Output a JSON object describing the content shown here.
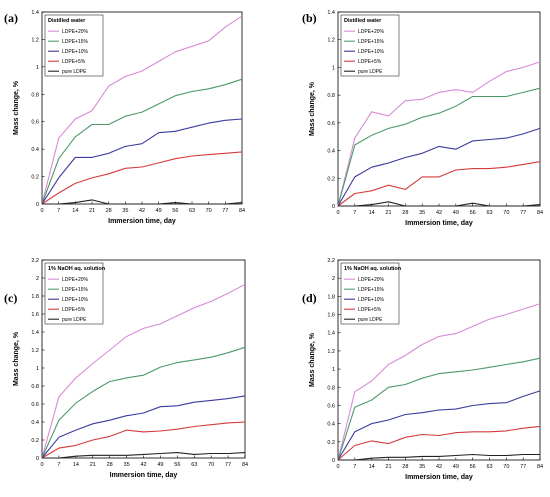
{
  "chart_data": [
    {
      "type": "line",
      "panel_label": "(a)",
      "legend_title": "Distilled water",
      "legend_placement": "top-left",
      "xlabel": "Immersion time, day",
      "ylabel": "Mass change, %",
      "x": [
        0,
        7,
        14,
        21,
        28,
        35,
        42,
        49,
        56,
        63,
        70,
        77,
        84
      ],
      "xticks": [
        "0",
        "7",
        "14",
        "21",
        "28",
        "35",
        "42",
        "49",
        "56",
        "63",
        "70",
        "77",
        "84"
      ],
      "xlim": [
        0,
        84
      ],
      "ylim": [
        0,
        1.4
      ],
      "yticks": [
        "0",
        "0.2",
        "0.4",
        "0.6",
        "0.8",
        "1",
        "1.2",
        "1.4"
      ],
      "ytick_values": [
        0,
        0.2,
        0.4,
        0.6,
        0.8,
        1,
        1.2,
        1.4
      ],
      "grid": false,
      "series": [
        {
          "name": "LDPE+20%",
          "color": "#d98ad6",
          "values": [
            0,
            0.48,
            0.62,
            0.68,
            0.86,
            0.93,
            0.97,
            1.04,
            1.11,
            1.15,
            1.19,
            1.29,
            1.37
          ]
        },
        {
          "name": "LDPE+15%",
          "color": "#4c9a6a",
          "values": [
            0,
            0.33,
            0.49,
            0.58,
            0.58,
            0.64,
            0.67,
            0.73,
            0.79,
            0.82,
            0.84,
            0.87,
            0.91
          ]
        },
        {
          "name": "LDPE+10%",
          "color": "#3b3b9e",
          "values": [
            0,
            0.19,
            0.34,
            0.34,
            0.37,
            0.42,
            0.44,
            0.52,
            0.53,
            0.56,
            0.59,
            0.61,
            0.62
          ]
        },
        {
          "name": "LDPE+5%",
          "color": "#d43b3b",
          "values": [
            0,
            0.08,
            0.15,
            0.19,
            0.22,
            0.26,
            0.27,
            0.3,
            0.33,
            0.35,
            0.36,
            0.37,
            0.38
          ]
        },
        {
          "name": "pure LDPE",
          "color": "#222222",
          "values": [
            0,
            0.0,
            0.01,
            0.03,
            0.0,
            0.0,
            0.0,
            0.0,
            0.01,
            0.0,
            0.0,
            0.0,
            0.01
          ]
        }
      ]
    },
    {
      "type": "line",
      "panel_label": "(b)",
      "legend_title": "Distilled water",
      "legend_placement": "top-left",
      "xlabel": "Immersion time, day",
      "ylabel": "Mass change, %",
      "x": [
        0,
        7,
        14,
        21,
        28,
        35,
        42,
        49,
        56,
        63,
        70,
        77,
        84
      ],
      "xticks": [
        "0",
        "7",
        "14",
        "21",
        "28",
        "35",
        "42",
        "49",
        "56",
        "63",
        "70",
        "77",
        "84"
      ],
      "xlim": [
        0,
        84
      ],
      "ylim": [
        0,
        1.4
      ],
      "yticks": [
        "0",
        "0.2",
        "0.4",
        "0.6",
        "0.8",
        "1",
        "1.2",
        "1.4"
      ],
      "ytick_values": [
        0,
        0.2,
        0.4,
        0.6,
        0.8,
        1,
        1.2,
        1.4
      ],
      "grid": false,
      "series": [
        {
          "name": "LDPE+20%",
          "color": "#d98ad6",
          "values": [
            0,
            0.49,
            0.68,
            0.65,
            0.76,
            0.77,
            0.82,
            0.84,
            0.82,
            0.9,
            0.97,
            1.0,
            1.04
          ]
        },
        {
          "name": "LDPE+15%",
          "color": "#4c9a6a",
          "values": [
            0,
            0.44,
            0.51,
            0.56,
            0.59,
            0.64,
            0.67,
            0.72,
            0.79,
            0.79,
            0.79,
            0.82,
            0.85
          ]
        },
        {
          "name": "LDPE+10%",
          "color": "#3b3b9e",
          "values": [
            0,
            0.21,
            0.28,
            0.31,
            0.35,
            0.38,
            0.43,
            0.41,
            0.47,
            0.48,
            0.49,
            0.52,
            0.56
          ]
        },
        {
          "name": "LDPE+5%",
          "color": "#d43b3b",
          "values": [
            0,
            0.09,
            0.11,
            0.15,
            0.12,
            0.21,
            0.21,
            0.26,
            0.27,
            0.27,
            0.28,
            0.3,
            0.32
          ]
        },
        {
          "name": "pure LDPE",
          "color": "#222222",
          "values": [
            0,
            0.0,
            0.01,
            0.03,
            0.0,
            0.0,
            0.0,
            0.0,
            0.02,
            0.0,
            0.0,
            0.0,
            0.01
          ]
        }
      ]
    },
    {
      "type": "line",
      "panel_label": "(c)",
      "legend_title": "1% NaOH aq. solution",
      "legend_placement": "top-left",
      "xlabel": "Immersion time, day",
      "ylabel": "Mass change, %",
      "x": [
        0,
        7,
        14,
        21,
        28,
        35,
        42,
        49,
        56,
        63,
        70,
        77,
        84
      ],
      "xticks": [
        "0",
        "7",
        "14",
        "21",
        "28",
        "35",
        "42",
        "49",
        "56",
        "63",
        "70",
        "77",
        "84"
      ],
      "xlim": [
        0,
        84
      ],
      "ylim": [
        0,
        2.2
      ],
      "yticks": [
        "0",
        "0.2",
        "0.4",
        "0.6",
        "0.8",
        "1",
        "1.2",
        "1.4",
        "1.6",
        "1.8",
        "2",
        "2.2"
      ],
      "ytick_values": [
        0,
        0.2,
        0.4,
        0.6,
        0.8,
        1,
        1.2,
        1.4,
        1.6,
        1.8,
        2,
        2.2
      ],
      "grid": false,
      "series": [
        {
          "name": "LDPE+20%",
          "color": "#d98ad6",
          "values": [
            0,
            0.68,
            0.89,
            1.05,
            1.2,
            1.35,
            1.44,
            1.49,
            1.58,
            1.67,
            1.74,
            1.83,
            1.93
          ]
        },
        {
          "name": "LDPE+15%",
          "color": "#4c9a6a",
          "values": [
            0,
            0.42,
            0.61,
            0.74,
            0.85,
            0.89,
            0.92,
            1.01,
            1.06,
            1.09,
            1.12,
            1.17,
            1.23
          ]
        },
        {
          "name": "LDPE+10%",
          "color": "#3b3b9e",
          "values": [
            0,
            0.23,
            0.31,
            0.38,
            0.42,
            0.47,
            0.5,
            0.57,
            0.58,
            0.62,
            0.64,
            0.66,
            0.69
          ]
        },
        {
          "name": "LDPE+5%",
          "color": "#d43b3b",
          "values": [
            0,
            0.11,
            0.14,
            0.2,
            0.24,
            0.31,
            0.29,
            0.3,
            0.32,
            0.35,
            0.37,
            0.39,
            0.4
          ]
        },
        {
          "name": "pure LDPE",
          "color": "#222222",
          "values": [
            0,
            0.0,
            0.02,
            0.03,
            0.03,
            0.03,
            0.04,
            0.05,
            0.06,
            0.04,
            0.05,
            0.05,
            0.06
          ]
        }
      ]
    },
    {
      "type": "line",
      "panel_label": "(d)",
      "legend_title": "1% NaOH aq. solution",
      "legend_placement": "top-left",
      "xlabel": "Immersion time, day",
      "ylabel": "Mass change, %",
      "x": [
        0,
        7,
        14,
        21,
        28,
        35,
        42,
        49,
        56,
        63,
        70,
        77,
        84
      ],
      "xticks": [
        "0",
        "7",
        "14",
        "21",
        "28",
        "35",
        "42",
        "49",
        "56",
        "63",
        "70",
        "77",
        "84"
      ],
      "xlim": [
        0,
        84
      ],
      "ylim": [
        0,
        2.2
      ],
      "yticks": [
        "0",
        "0.2",
        "0.4",
        "0.6",
        "0.8",
        "1",
        "1.2",
        "1.4",
        "1.6",
        "1.8",
        "2",
        "2.2"
      ],
      "ytick_values": [
        0,
        0.2,
        0.4,
        0.6,
        0.8,
        1,
        1.2,
        1.4,
        1.6,
        1.8,
        2,
        2.2
      ],
      "grid": false,
      "series": [
        {
          "name": "LDPE+20%",
          "color": "#d98ad6",
          "values": [
            0,
            0.75,
            0.87,
            1.05,
            1.15,
            1.27,
            1.36,
            1.39,
            1.47,
            1.55,
            1.6,
            1.66,
            1.72
          ]
        },
        {
          "name": "LDPE+15%",
          "color": "#4c9a6a",
          "values": [
            0,
            0.58,
            0.66,
            0.8,
            0.83,
            0.9,
            0.95,
            0.97,
            0.99,
            1.02,
            1.05,
            1.08,
            1.12
          ]
        },
        {
          "name": "LDPE+10%",
          "color": "#3b3b9e",
          "values": [
            0,
            0.31,
            0.4,
            0.44,
            0.5,
            0.52,
            0.55,
            0.56,
            0.6,
            0.62,
            0.63,
            0.7,
            0.76
          ]
        },
        {
          "name": "LDPE+5%",
          "color": "#d43b3b",
          "values": [
            0,
            0.16,
            0.21,
            0.18,
            0.25,
            0.28,
            0.27,
            0.3,
            0.31,
            0.31,
            0.32,
            0.35,
            0.37
          ]
        },
        {
          "name": "pure LDPE",
          "color": "#222222",
          "values": [
            0,
            0.0,
            0.02,
            0.03,
            0.03,
            0.04,
            0.04,
            0.05,
            0.06,
            0.05,
            0.05,
            0.06,
            0.06
          ]
        }
      ]
    }
  ]
}
